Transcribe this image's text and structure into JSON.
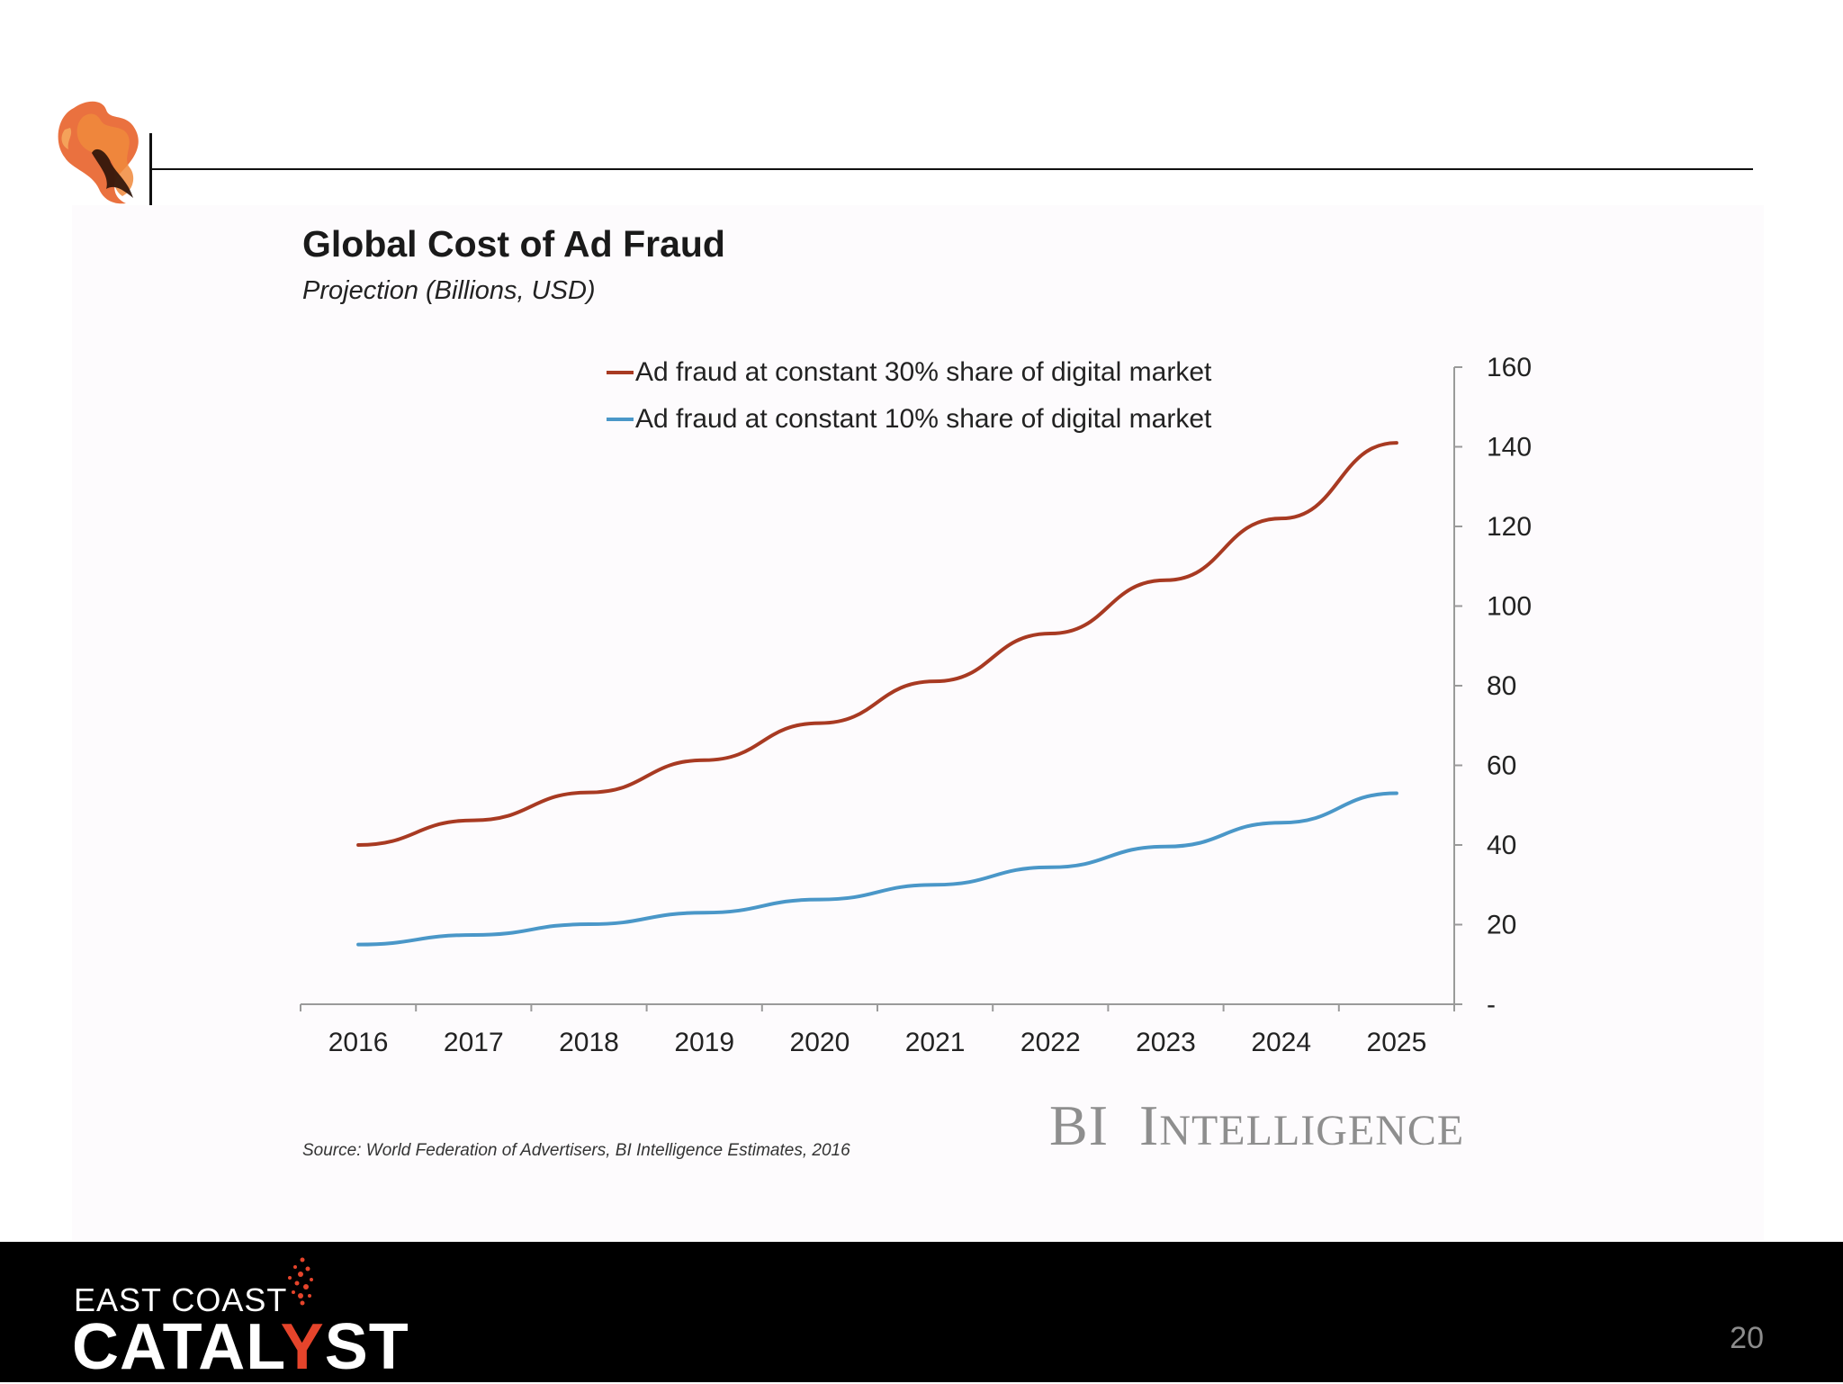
{
  "slide": {
    "page_number": "20",
    "footer_brand_line1": "EAST COAST",
    "footer_brand_line2_part1": "CATAL",
    "footer_brand_line2_accent": "Y",
    "footer_brand_line2_part2": "ST",
    "accent_color": "#e5442b",
    "logo_icon": "smoke-icon"
  },
  "chart_data": {
    "type": "line",
    "title": "Global Cost of Ad Fraud",
    "subtitle": "Projection (Billions, USD)",
    "x": [
      "2016",
      "2017",
      "2018",
      "2019",
      "2020",
      "2021",
      "2022",
      "2023",
      "2024",
      "2025"
    ],
    "series": [
      {
        "name": "Ad fraud at constant 30% share of digital market",
        "color": "#a83a22",
        "values": [
          40,
          46.2,
          53.2,
          61.3,
          70.6,
          81.1,
          93.1,
          106.5,
          122.0,
          141.0
        ]
      },
      {
        "name": "Ad fraud at constant 10% share of digital market",
        "color": "#4a97c8",
        "values": [
          15,
          17.4,
          20.1,
          23.0,
          26.3,
          30.0,
          34.4,
          39.6,
          45.6,
          53.0
        ]
      }
    ],
    "yaxis": {
      "position": "right",
      "ticks": [
        "-",
        "20",
        "40",
        "60",
        "80",
        "100",
        "120",
        "140",
        "160"
      ],
      "ylim": [
        0,
        160
      ]
    },
    "grid": false,
    "legend_placement": "top-center",
    "source": "Source: World Federation of Advertisers, BI Intelligence Estimates, 2016",
    "watermark": {
      "first": "BI",
      "cap": "I",
      "rest": "NTELLIGENCE"
    }
  }
}
